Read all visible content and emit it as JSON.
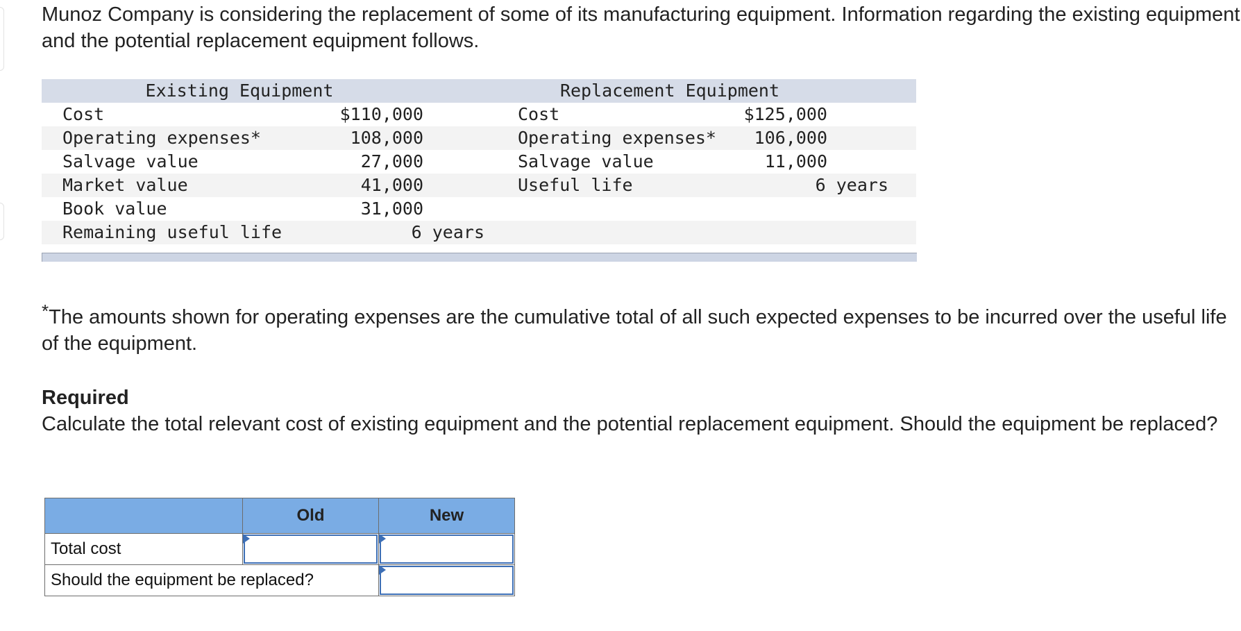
{
  "intro": "Munoz Company is considering the replacement of some of its manufacturing equipment. Information regarding the existing equipment and the potential replacement equipment follows.",
  "existing": {
    "heading": "Existing Equipment",
    "rows": [
      {
        "label": "Cost",
        "value": "$110,000"
      },
      {
        "label": "Operating expenses*",
        "value": "108,000"
      },
      {
        "label": "Salvage value",
        "value": "27,000"
      },
      {
        "label": "Market value",
        "value": "41,000"
      },
      {
        "label": "Book value",
        "value": "31,000"
      },
      {
        "label": "Remaining useful life",
        "value": "6 years"
      }
    ]
  },
  "replacement": {
    "heading": "Replacement Equipment",
    "rows": [
      {
        "label": "Cost",
        "value": "$125,000"
      },
      {
        "label": "Operating expenses*",
        "value": "106,000"
      },
      {
        "label": "Salvage value",
        "value": "11,000"
      },
      {
        "label": "Useful life",
        "value": "6 years"
      }
    ]
  },
  "footnote": {
    "mark": "*",
    "text": "The amounts shown for operating expenses are the cumulative total of all such expected expenses to be incurred over the useful life of the equipment."
  },
  "required": {
    "title": "Required",
    "text": "Calculate the total relevant cost of existing equipment and the potential replacement equipment. Should the equipment be replaced?"
  },
  "answer_table": {
    "col_old": "Old",
    "col_new": "New",
    "row_total_cost": "Total cost",
    "row_replace": "Should the equipment be replaced?",
    "total_cost_old_value": "",
    "total_cost_new_value": "",
    "replace_value": ""
  },
  "colors": {
    "header_band": "#d6dce8",
    "answer_header": "#7aace4",
    "input_border": "#3d6fb6"
  }
}
